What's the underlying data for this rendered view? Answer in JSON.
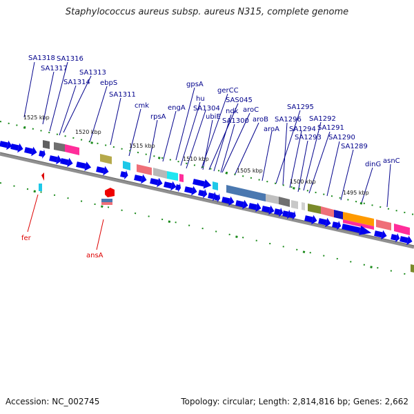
{
  "title": "Staphylococcus aureus subsp. aureus N315, complete genome",
  "footer": {
    "accession": "Accession: NC_002745",
    "summary": "Topology: circular; Length: 2,814,816 bp; Genes: 2,662"
  },
  "scale_labels": [
    "1525 kbp",
    "1520 kbp",
    "1515 kbp",
    "1510 kbp",
    "1505 kbp",
    "1500 kbp",
    "1495 kbp"
  ],
  "gene_labels": [
    "SA1318",
    "SA1316",
    "SA1317",
    "SA1313",
    "SA1314",
    "ebpS",
    "SA1311",
    "gpsA",
    "cmk",
    "hu",
    "engA",
    "SA1304",
    "rpsA",
    "gerCC",
    "SAS045",
    "ubiE",
    "ndk",
    "SA1300",
    "aroC",
    "aroB",
    "aroA",
    "SA1295",
    "SA1296",
    "SA1294",
    "SA1292",
    "SA1293",
    "SA1291",
    "SA1290",
    "SA1289",
    "dinG",
    "asnC"
  ],
  "highlight_labels": [
    "fer",
    "ansA"
  ],
  "colors": {
    "gene_arrow": "#0000ee",
    "label": "#00008b",
    "highlight": "#dd0000",
    "tick": "#1a8a1a",
    "backbone": "#808080"
  }
}
